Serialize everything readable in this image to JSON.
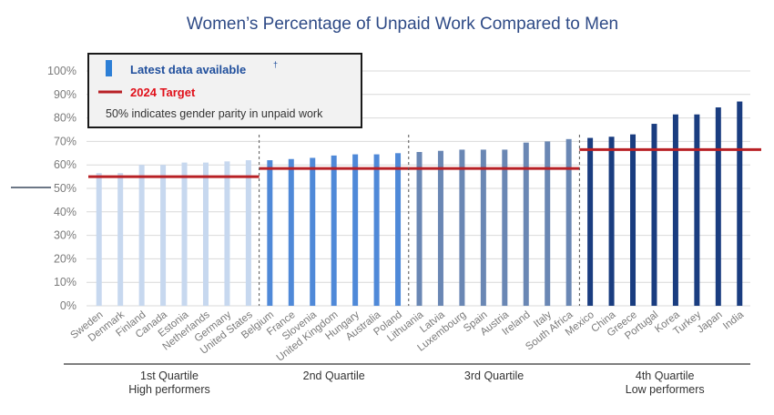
{
  "chart_data": {
    "type": "bar",
    "title": "Women’s Percentage of Unpaid Work Compared to Men",
    "ylim": [
      0,
      100
    ],
    "yticks": [
      "0%",
      "10%",
      "20%",
      "30%",
      "40%",
      "50%",
      "60%",
      "70%",
      "80%",
      "90%",
      "100%"
    ],
    "grid": true,
    "categories": [
      "Sweden",
      "Denmark",
      "Finland",
      "Canada",
      "Estonia",
      "Netherlands",
      "Germany",
      "United States",
      "Belgium",
      "France",
      "Slovenia",
      "United Kingdom",
      "Hungary",
      "Australia",
      "Poland",
      "Lithuania",
      "Latvia",
      "Luxembourg",
      "Spain",
      "Austria",
      "Ireland",
      "Italy",
      "South Africa",
      "Mexico",
      "China",
      "Greece",
      "Portugal",
      "Korea",
      "Turkey",
      "Japan",
      "India"
    ],
    "values": [
      56.5,
      56.5,
      60,
      60,
      61,
      61,
      61.5,
      62,
      62,
      62.5,
      63,
      64,
      64.5,
      64.5,
      65,
      65.5,
      66,
      66.5,
      66.5,
      66.5,
      69.5,
      70,
      71,
      71.5,
      72,
      73,
      77.5,
      81.5,
      81.5,
      84.5,
      87
    ],
    "quartiles": [
      {
        "name": "1st Quartile",
        "sub": "High performers",
        "start": 0,
        "end": 7,
        "target": 55,
        "color": "#c7d8ef"
      },
      {
        "name": "2nd Quartile",
        "sub": "",
        "start": 8,
        "end": 14,
        "target": 58.5,
        "color": "#4f89d8"
      },
      {
        "name": "3rd Quartile",
        "sub": "",
        "start": 15,
        "end": 22,
        "target": 58.5,
        "color": "#6a87b4"
      },
      {
        "name": "4th Quartile",
        "sub": "Low performers",
        "start": 23,
        "end": 30,
        "target": 66.5,
        "color": "#1a3d80"
      }
    ],
    "legend": {
      "latest": "Latest data available",
      "latest_mark": "†",
      "target": "2024 Target",
      "note": "50% indicates gender parity in unpaid work",
      "position": "top-left"
    },
    "colors": {
      "target_line": "#b82025",
      "grid": "#d9d9d9",
      "legend_bar": "#2d7fd6"
    }
  }
}
